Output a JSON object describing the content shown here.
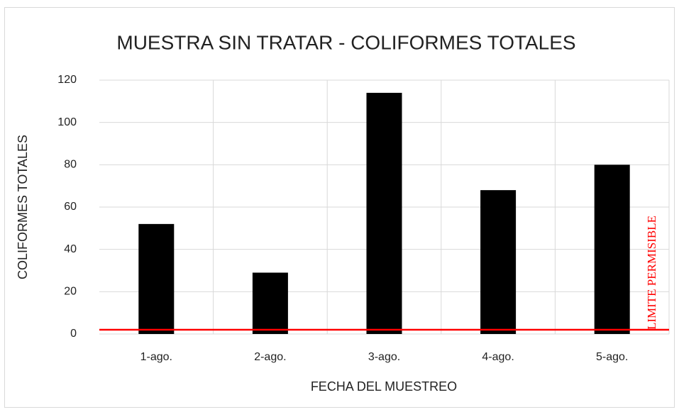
{
  "chart_data": {
    "type": "bar",
    "title": "MUESTRA SIN TRATAR - COLIFORMES TOTALES",
    "x_label": "FECHA DEL MUESTREO",
    "y_label": "COLIFORMES TOTALES",
    "categories": [
      "1-ago.",
      "2-ago.",
      "3-ago.",
      "4-ago.",
      "5-ago."
    ],
    "values": [
      52,
      29,
      114,
      68,
      80
    ],
    "color": "#000000",
    "ylim": [
      0,
      120
    ],
    "yticks": [
      0,
      20,
      40,
      60,
      80,
      100,
      120
    ],
    "grid": true,
    "limit": {
      "value": 2,
      "label": "LIMITE PERMISIBLE",
      "color": "#ff0000"
    }
  }
}
